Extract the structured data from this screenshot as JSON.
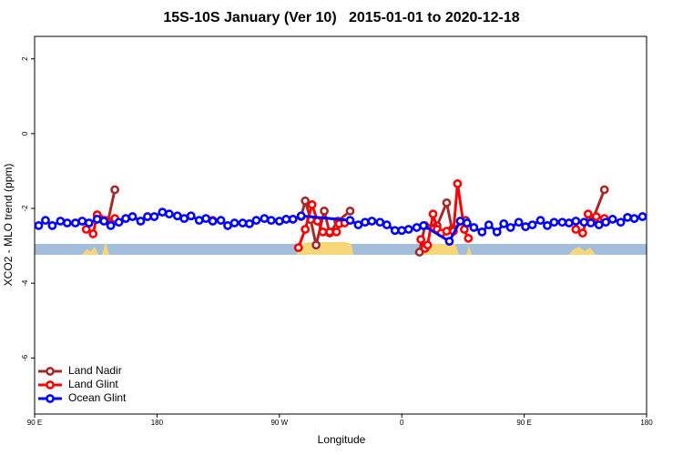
{
  "chart_data": {
    "type": "line",
    "title": "15S-10S January (Ver 10)   2015-01-01 to 2020-12-18",
    "x_label": "Longitude",
    "y_label": "XCO2 - MLO trend (ppm)",
    "xlim": [
      90,
      540
    ],
    "ylim": [
      -7.5,
      2.6
    ],
    "xticks": [
      {
        "value": 90,
        "label": "90 E"
      },
      180,
      {
        "value": 270,
        "label": "90 W"
      },
      {
        "value": 360,
        "label": "0"
      },
      {
        "value": 450,
        "label": "90 E"
      },
      {
        "value": 540,
        "label": "180"
      }
    ],
    "yticks": [
      -6,
      -4,
      -2,
      0,
      2
    ],
    "legend": "bottom-left",
    "series": [
      {
        "name": "Land Nadir",
        "color": "#a52a2a",
        "x": [
          138,
          144,
          149,
          286,
          289,
          293,
          297,
          303,
          307,
          313,
          322,
          373,
          377,
          386,
          393,
          397,
          407,
          500,
          509
        ],
        "values": [
          -2.27,
          -2.34,
          -1.5,
          -2.22,
          -1.8,
          -2.3,
          -2.98,
          -2.07,
          -2.66,
          -2.34,
          -2.07,
          -3.17,
          -2.46,
          -2.46,
          -1.85,
          -2.56,
          -2.32,
          -2.34,
          -1.5
        ]
      },
      {
        "name": "Land Glint",
        "color": "#ff0000",
        "x": [
          128,
          133,
          136,
          142,
          149,
          221,
          284,
          289,
          294,
          298,
          302,
          307,
          312,
          314,
          318,
          374,
          377,
          379,
          383,
          386,
          389,
          393,
          398,
          401,
          406,
          409,
          488,
          493,
          497,
          503,
          509
        ],
        "values": [
          -2.56,
          -2.68,
          -2.17,
          -2.32,
          -2.27,
          -2.32,
          -3.05,
          -2.56,
          -1.9,
          -2.34,
          -2.63,
          -2.63,
          -2.63,
          -2.41,
          -2.39,
          -2.83,
          -3.07,
          -2.98,
          -2.15,
          -2.56,
          -2.66,
          -2.61,
          -2.61,
          -1.34,
          -2.56,
          -2.8,
          -2.56,
          -2.66,
          -2.15,
          -2.22,
          -2.27
        ]
      },
      {
        "name": "Ocean Glint",
        "color": "#0000ff",
        "x": [
          93,
          98,
          103,
          109,
          114,
          120,
          125,
          130,
          136,
          141,
          146,
          152,
          157,
          162,
          168,
          173,
          178,
          184,
          189,
          195,
          200,
          205,
          211,
          216,
          221,
          227,
          232,
          237,
          243,
          248,
          253,
          259,
          264,
          270,
          275,
          280,
          286,
          322,
          328,
          333,
          338,
          344,
          349,
          355,
          360,
          365,
          371,
          376,
          395,
          403,
          408,
          413,
          419,
          424,
          430,
          435,
          440,
          446,
          451,
          456,
          462,
          467,
          472,
          478,
          483,
          488,
          494,
          499,
          505,
          510,
          515,
          521,
          526,
          531,
          537
        ],
        "values": [
          -2.46,
          -2.32,
          -2.46,
          -2.34,
          -2.39,
          -2.39,
          -2.34,
          -2.39,
          -2.29,
          -2.34,
          -2.46,
          -2.37,
          -2.27,
          -2.22,
          -2.34,
          -2.22,
          -2.22,
          -2.1,
          -2.15,
          -2.2,
          -2.27,
          -2.2,
          -2.32,
          -2.27,
          -2.34,
          -2.32,
          -2.46,
          -2.39,
          -2.39,
          -2.41,
          -2.32,
          -2.27,
          -2.32,
          -2.34,
          -2.29,
          -2.29,
          -2.2,
          -2.32,
          -2.44,
          -2.37,
          -2.34,
          -2.37,
          -2.44,
          -2.59,
          -2.59,
          -2.56,
          -2.51,
          -2.46,
          -2.88,
          -2.34,
          -2.39,
          -2.51,
          -2.63,
          -2.44,
          -2.63,
          -2.41,
          -2.51,
          -2.37,
          -2.49,
          -2.44,
          -2.32,
          -2.46,
          -2.37,
          -2.37,
          -2.39,
          -2.34,
          -2.37,
          -2.39,
          -2.44,
          -2.37,
          -2.29,
          -2.37,
          -2.24,
          -2.27,
          -2.22
        ]
      }
    ]
  }
}
